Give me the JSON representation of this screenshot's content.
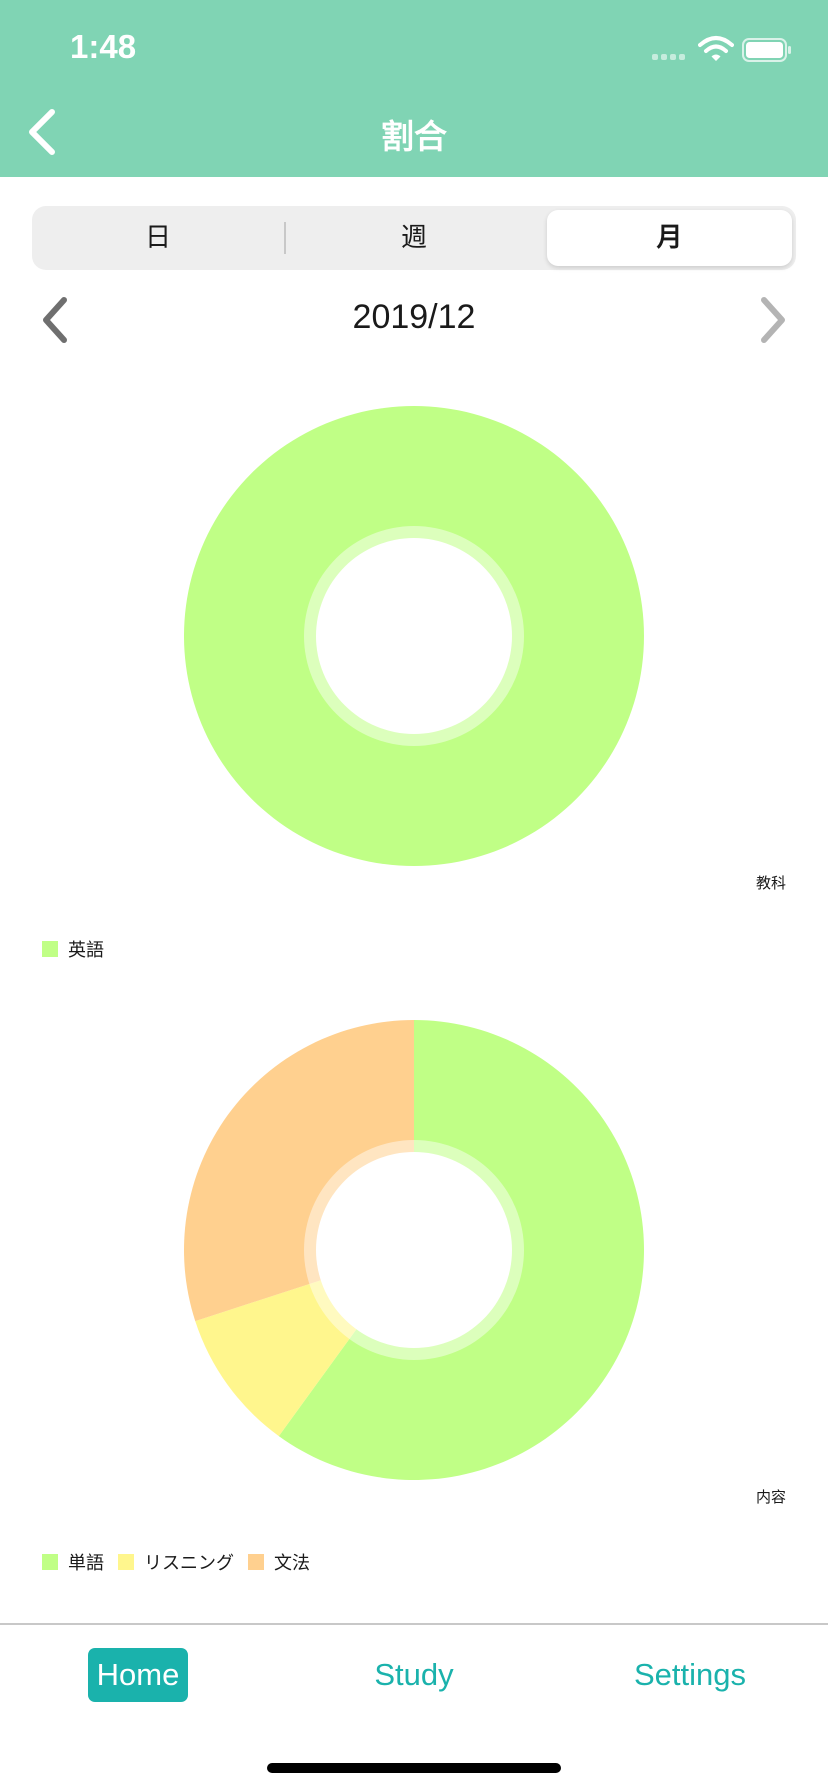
{
  "status_bar": {
    "time": "1:48"
  },
  "nav": {
    "title": "割合",
    "back_icon": "chevron-left-icon"
  },
  "segments": [
    {
      "label": "日",
      "selected": false
    },
    {
      "label": "週",
      "selected": false
    },
    {
      "label": "月",
      "selected": true
    }
  ],
  "period": {
    "label": "2019/12",
    "prev_icon": "chevron-left-icon",
    "next_icon": "chevron-right-icon"
  },
  "colors": {
    "header": "#80d4b4",
    "accent": "#1ab2ac",
    "green": "#c0ff86",
    "yellow": "#fff68d",
    "orange": "#ffd08f"
  },
  "chart_data": [
    {
      "type": "pie",
      "style": "donut",
      "description": "教科",
      "categories": [
        "英語"
      ],
      "values": [
        100
      ],
      "colors": [
        "#c0ff86"
      ]
    },
    {
      "type": "pie",
      "style": "donut",
      "description": "内容",
      "categories": [
        "単語",
        "リスニング",
        "文法"
      ],
      "values": [
        60,
        10,
        30
      ],
      "colors": [
        "#c0ff86",
        "#fff68d",
        "#ffd08f"
      ]
    }
  ],
  "tabs": [
    {
      "label": "Home",
      "active": true
    },
    {
      "label": "Study",
      "active": false
    },
    {
      "label": "Settings",
      "active": false
    }
  ]
}
